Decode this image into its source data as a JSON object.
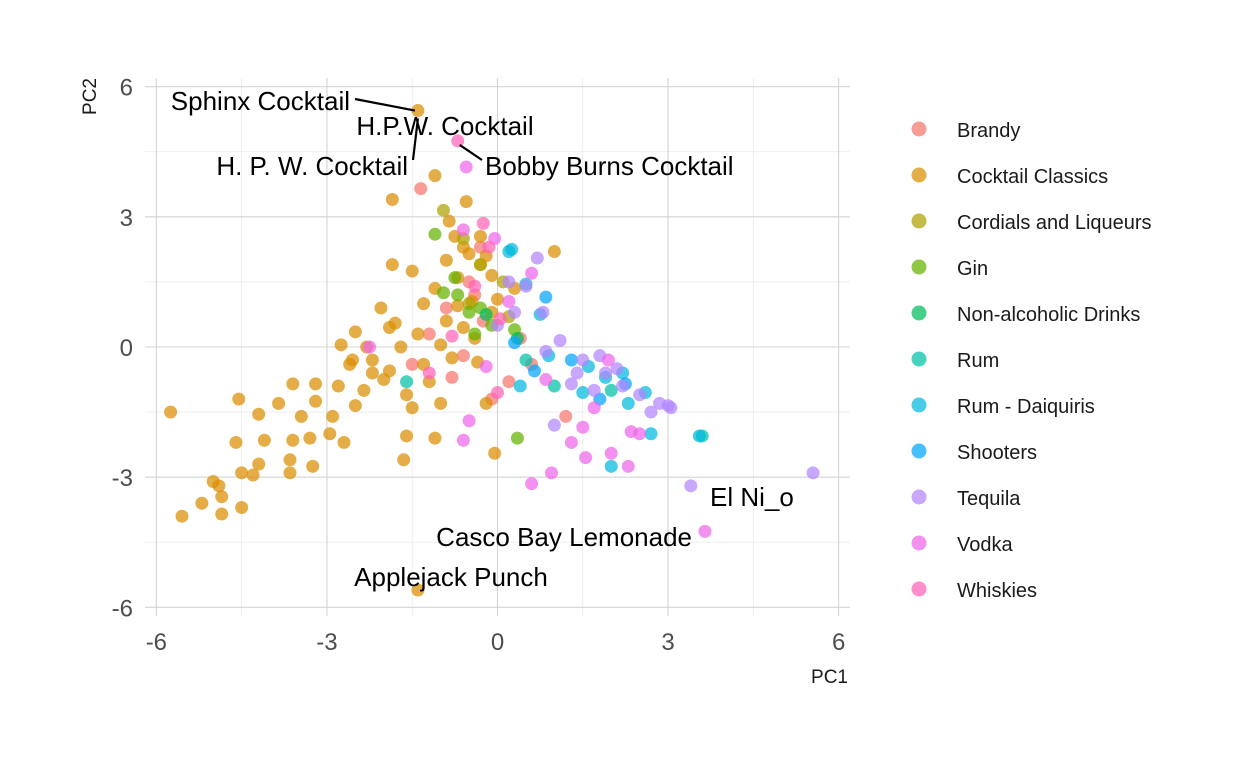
{
  "chart_data": {
    "type": "scatter",
    "title": "",
    "xlabel": "PC1",
    "ylabel": "PC2",
    "xlim": [
      -6.2,
      6.2
    ],
    "ylim": [
      -6.2,
      6.2
    ],
    "x_ticks": [
      -6,
      -3,
      0,
      3,
      6
    ],
    "y_ticks": [
      -6,
      -3,
      0,
      3,
      6
    ],
    "grid": true,
    "legend_position": "right",
    "colors": {
      "Brandy": "#F8766D",
      "Cocktail Classics": "#DB8E00",
      "Cordials and Liqueurs": "#AEA200",
      "Gin": "#64B200",
      "Non-alcoholic Drinks": "#00BD5C",
      "Rum": "#00C1A7",
      "Rum - Daiquiris": "#00BADE",
      "Shooters": "#00A6FF",
      "Tequila": "#B385FF",
      "Vodka": "#EF67EB",
      "Whiskies": "#FF63B6"
    },
    "series": [
      {
        "name": "Brandy",
        "points": [
          [
            -1.35,
            3.65
          ],
          [
            -0.3,
            2.3
          ],
          [
            -0.5,
            1.5
          ],
          [
            -0.9,
            0.9
          ],
          [
            -1.2,
            0.3
          ],
          [
            -0.6,
            -0.2
          ],
          [
            -0.25,
            0.6
          ],
          [
            -0.8,
            -0.7
          ],
          [
            0.2,
            -0.8
          ],
          [
            0.6,
            -0.4
          ],
          [
            1.2,
            -1.6
          ],
          [
            -1.5,
            -0.4
          ],
          [
            -0.4,
            1.2
          ],
          [
            -0.1,
            -1.2
          ],
          [
            0.4,
            0.2
          ]
        ]
      },
      {
        "name": "Cocktail Classics",
        "points": [
          [
            -1.4,
            5.45
          ],
          [
            -1.1,
            3.95
          ],
          [
            -1.85,
            3.4
          ],
          [
            -0.55,
            3.35
          ],
          [
            -0.85,
            2.9
          ],
          [
            -0.3,
            2.55
          ],
          [
            1.0,
            2.2
          ],
          [
            -1.85,
            1.9
          ],
          [
            -1.5,
            1.75
          ],
          [
            -2.05,
            0.9
          ],
          [
            -1.9,
            0.45
          ],
          [
            -2.5,
            0.35
          ],
          [
            -2.75,
            0.05
          ],
          [
            -2.55,
            -0.3
          ],
          [
            -2.2,
            -0.6
          ],
          [
            -2.8,
            -0.9
          ],
          [
            -3.2,
            -0.85
          ],
          [
            -3.6,
            -0.85
          ],
          [
            -3.2,
            -1.25
          ],
          [
            -3.45,
            -1.6
          ],
          [
            -3.85,
            -1.3
          ],
          [
            -4.2,
            -1.55
          ],
          [
            -4.55,
            -1.2
          ],
          [
            -3.6,
            -2.15
          ],
          [
            -3.3,
            -2.1
          ],
          [
            -4.1,
            -2.15
          ],
          [
            -4.6,
            -2.2
          ],
          [
            -3.65,
            -2.6
          ],
          [
            -3.25,
            -2.75
          ],
          [
            -3.65,
            -2.9
          ],
          [
            -4.2,
            -2.7
          ],
          [
            -4.5,
            -2.9
          ],
          [
            -4.3,
            -2.95
          ],
          [
            -5.0,
            -3.1
          ],
          [
            -4.9,
            -3.2
          ],
          [
            -5.2,
            -3.6
          ],
          [
            -4.85,
            -3.45
          ],
          [
            -4.5,
            -3.7
          ],
          [
            -5.55,
            -3.9
          ],
          [
            -4.85,
            -3.85
          ],
          [
            -5.75,
            -1.5
          ],
          [
            -2.0,
            -0.75
          ],
          [
            -1.6,
            -1.1
          ],
          [
            -1.5,
            -1.4
          ],
          [
            -1.6,
            -2.05
          ],
          [
            -1.1,
            -2.1
          ],
          [
            -1.65,
            -2.6
          ],
          [
            -0.05,
            -2.45
          ],
          [
            -0.2,
            -1.3
          ],
          [
            -1.0,
            -1.3
          ],
          [
            -1.4,
            -5.6
          ],
          [
            -0.6,
            2.3
          ],
          [
            -0.9,
            2.0
          ],
          [
            -0.3,
            1.9
          ],
          [
            -0.7,
            1.6
          ],
          [
            -1.1,
            1.35
          ],
          [
            -0.45,
            1.05
          ],
          [
            -0.9,
            0.6
          ],
          [
            -1.4,
            0.3
          ],
          [
            -1.7,
            0.0
          ],
          [
            -2.3,
            0.0
          ],
          [
            -2.6,
            -0.4
          ],
          [
            -2.35,
            -1.0
          ],
          [
            -2.5,
            -1.35
          ],
          [
            -2.9,
            -1.6
          ],
          [
            -2.95,
            -2.0
          ],
          [
            -2.7,
            -2.2
          ],
          [
            -1.3,
            -0.4
          ],
          [
            -1.0,
            0.05
          ],
          [
            -0.6,
            0.45
          ],
          [
            -0.1,
            0.8
          ],
          [
            -0.4,
            0.2
          ],
          [
            0.0,
            1.1
          ],
          [
            -0.2,
            2.1
          ],
          [
            -0.75,
            2.55
          ],
          [
            -0.5,
            2.15
          ],
          [
            -1.3,
            1.0
          ],
          [
            -1.8,
            0.55
          ],
          [
            -2.2,
            -0.3
          ],
          [
            -1.9,
            -0.55
          ],
          [
            -1.2,
            -0.8
          ],
          [
            -0.8,
            -0.25
          ],
          [
            -0.35,
            -0.35
          ],
          [
            -0.7,
            0.95
          ],
          [
            -0.1,
            1.65
          ],
          [
            0.3,
            1.35
          ]
        ]
      },
      {
        "name": "Cordials and Liqueurs",
        "points": [
          [
            -0.95,
            3.15
          ],
          [
            -0.6,
            2.5
          ],
          [
            -0.3,
            1.9
          ],
          [
            0.1,
            1.5
          ],
          [
            -0.5,
            1.0
          ],
          [
            0.2,
            0.7
          ]
        ]
      },
      {
        "name": "Gin",
        "points": [
          [
            -1.1,
            2.6
          ],
          [
            -0.75,
            1.6
          ],
          [
            -0.5,
            0.8
          ],
          [
            -0.7,
            1.2
          ],
          [
            -0.3,
            0.9
          ],
          [
            -0.1,
            0.5
          ],
          [
            0.35,
            -2.1
          ],
          [
            -0.4,
            0.3
          ],
          [
            0.3,
            0.4
          ],
          [
            -0.95,
            1.25
          ]
        ]
      },
      {
        "name": "Non-alcoholic Drinks",
        "points": [
          [
            -0.2,
            0.75
          ],
          [
            0.35,
            0.2
          ]
        ]
      },
      {
        "name": "Rum",
        "points": [
          [
            -1.6,
            -0.8
          ],
          [
            0.5,
            -0.3
          ],
          [
            1.0,
            -0.9
          ],
          [
            2.0,
            -1.0
          ],
          [
            3.6,
            -2.05
          ]
        ]
      },
      {
        "name": "Rum - Daiquiris",
        "points": [
          [
            0.25,
            2.25
          ],
          [
            0.5,
            1.45
          ],
          [
            0.75,
            0.75
          ],
          [
            0.9,
            -0.2
          ],
          [
            1.6,
            -0.45
          ],
          [
            2.2,
            -0.6
          ],
          [
            2.0,
            -2.75
          ],
          [
            2.7,
            -2.0
          ],
          [
            3.55,
            -2.05
          ],
          [
            1.9,
            -0.7
          ],
          [
            0.4,
            -0.9
          ],
          [
            1.5,
            -1.05
          ],
          [
            2.6,
            -1.05
          ],
          [
            2.3,
            -1.3
          ],
          [
            0.2,
            2.2
          ]
        ]
      },
      {
        "name": "Shooters",
        "points": [
          [
            0.85,
            1.15
          ],
          [
            0.3,
            0.1
          ],
          [
            1.3,
            -0.3
          ],
          [
            1.8,
            -1.2
          ],
          [
            2.25,
            -0.85
          ],
          [
            0.65,
            -0.55
          ]
        ]
      },
      {
        "name": "Tequila",
        "points": [
          [
            0.7,
            2.05
          ],
          [
            0.5,
            1.4
          ],
          [
            0.8,
            0.8
          ],
          [
            1.1,
            0.15
          ],
          [
            1.5,
            -0.3
          ],
          [
            1.9,
            -0.6
          ],
          [
            2.2,
            -0.9
          ],
          [
            2.5,
            -1.1
          ],
          [
            2.85,
            -1.3
          ],
          [
            3.0,
            -1.35
          ],
          [
            3.4,
            -3.2
          ],
          [
            5.55,
            -2.9
          ],
          [
            1.0,
            -1.8
          ],
          [
            1.3,
            -0.85
          ],
          [
            2.1,
            -0.5
          ],
          [
            1.7,
            -1.0
          ],
          [
            0.2,
            1.5
          ],
          [
            0.0,
            0.5
          ],
          [
            1.8,
            -0.2
          ],
          [
            0.3,
            0.8
          ],
          [
            0.85,
            -0.1
          ],
          [
            1.4,
            -0.6
          ],
          [
            2.7,
            -1.5
          ],
          [
            3.05,
            -1.4
          ]
        ]
      },
      {
        "name": "Vodka",
        "points": [
          [
            -0.55,
            4.15
          ],
          [
            -0.6,
            2.7
          ],
          [
            -0.05,
            2.5
          ],
          [
            0.6,
            1.7
          ],
          [
            0.2,
            1.05
          ],
          [
            0.85,
            -0.75
          ],
          [
            1.3,
            -2.2
          ],
          [
            1.55,
            -2.55
          ],
          [
            0.6,
            -3.15
          ],
          [
            0.95,
            -2.9
          ],
          [
            1.5,
            -1.85
          ],
          [
            2.0,
            -2.45
          ],
          [
            2.3,
            -2.75
          ],
          [
            2.35,
            -1.95
          ],
          [
            3.65,
            -4.25
          ],
          [
            -0.6,
            -2.15
          ],
          [
            -0.5,
            -1.7
          ],
          [
            -2.25,
            0.0
          ],
          [
            1.95,
            -0.3
          ],
          [
            2.5,
            -2.0
          ],
          [
            1.7,
            -1.4
          ],
          [
            -0.2,
            -0.45
          ]
        ]
      },
      {
        "name": "Whiskies",
        "points": [
          [
            -0.7,
            4.75
          ],
          [
            -0.25,
            2.85
          ],
          [
            -0.15,
            2.3
          ],
          [
            -0.8,
            0.25
          ],
          [
            -1.2,
            -0.6
          ],
          [
            0.0,
            -1.05
          ],
          [
            -0.4,
            1.4
          ],
          [
            0.05,
            0.65
          ]
        ]
      }
    ],
    "annotations": [
      {
        "text": "Sphinx Cocktail",
        "x": -1.4,
        "y": 5.45
      },
      {
        "text": "H.P.W. Cocktail",
        "x": -0.7,
        "y": 4.75
      },
      {
        "text": "H. P. W. Cocktail",
        "x": -1.4,
        "y": 5.45
      },
      {
        "text": "Bobby Burns Cocktail",
        "x": -0.55,
        "y": 4.15
      },
      {
        "text": "El Ni_o",
        "x": 3.4,
        "y": -3.2
      },
      {
        "text": "Casco Bay Lemonade",
        "x": 3.65,
        "y": -4.25
      },
      {
        "text": "Applejack Punch",
        "x": -1.4,
        "y": -5.6
      }
    ]
  }
}
